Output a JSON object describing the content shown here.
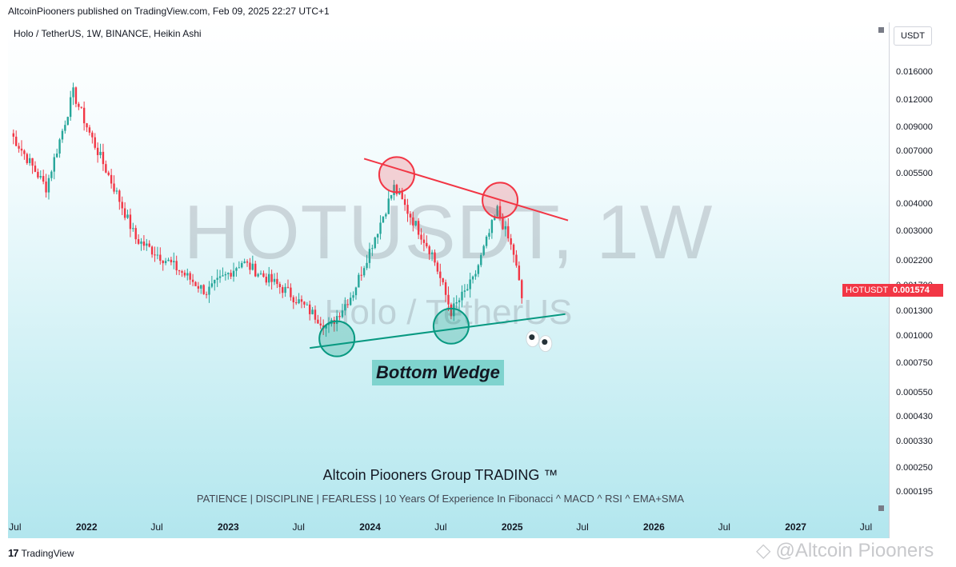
{
  "header": {
    "published_text": "AltcoinPiooners published on TradingView.com, Feb 09, 2025 22:27 UTC+1"
  },
  "symbol": {
    "description": "Holo / TetherUS, 1W, BINANCE, Heikin Ashi",
    "watermark_ticker": "HOTUSDT, 1W",
    "watermark_name": "Holo / TetherUS"
  },
  "annotations": {
    "pattern_label": "Bottom Wedge",
    "group_title": "Altcoin Piooners Group TRADING ™",
    "tagline": "PATIENCE   |   DISCIPLINE   |   FEARLESS | 10 Years Of Experience In Fibonacci ^ MACD ^ RSI ^ EMA+SMA"
  },
  "price_axis": {
    "currency": "USDT",
    "ticks": [
      "0.016000",
      "0.012000",
      "0.009000",
      "0.007000",
      "0.005500",
      "0.004000",
      "0.003000",
      "0.002200",
      "0.001700",
      "0.001300",
      "0.001000",
      "0.000750",
      "0.000550",
      "0.000430",
      "0.000330",
      "0.000250",
      "0.000195"
    ],
    "current_symbol": "HOTUSDT",
    "current_price": "0.001574"
  },
  "time_axis": {
    "ticks": [
      {
        "label": "Jul",
        "year": false
      },
      {
        "label": "2022",
        "year": true
      },
      {
        "label": "Jul",
        "year": false
      },
      {
        "label": "2023",
        "year": true
      },
      {
        "label": "Jul",
        "year": false
      },
      {
        "label": "2024",
        "year": true
      },
      {
        "label": "Jul",
        "year": false
      },
      {
        "label": "2025",
        "year": true
      },
      {
        "label": "Jul",
        "year": false
      },
      {
        "label": "2026",
        "year": true
      },
      {
        "label": "Jul",
        "year": false
      },
      {
        "label": "2027",
        "year": true
      },
      {
        "label": "Jul",
        "year": false
      }
    ]
  },
  "footer": {
    "brand": "TradingView",
    "watermark": "@Altcoin Piooners"
  },
  "colors": {
    "up": "#26a69a",
    "down": "#f23645",
    "resistance_line": "#f23645",
    "support_line": "#089981"
  },
  "chart_data": {
    "type": "candlestick",
    "style": "Heikin Ashi",
    "timeframe": "1W",
    "scale": "log",
    "ylim": [
      0.000185,
      0.0185
    ],
    "x_range": [
      "2021-06-21",
      "2027-09-06"
    ],
    "legend": "none",
    "grid": false,
    "key_points": [
      {
        "date": "2021-06-28",
        "price": 0.0085
      },
      {
        "date": "2021-09-27",
        "price": 0.0048
      },
      {
        "date": "2021-12-06",
        "price": 0.013
      },
      {
        "date": "2022-01-17",
        "price": 0.0085
      },
      {
        "date": "2022-03-28",
        "price": 0.0045
      },
      {
        "date": "2022-05-16",
        "price": 0.0028
      },
      {
        "date": "2022-08-08",
        "price": 0.0022
      },
      {
        "date": "2022-11-14",
        "price": 0.0016
      },
      {
        "date": "2023-02-13",
        "price": 0.0022
      },
      {
        "date": "2023-06-12",
        "price": 0.0016
      },
      {
        "date": "2023-09-25",
        "price": 0.0011
      },
      {
        "date": "2023-11-27",
        "price": 0.0016
      },
      {
        "date": "2024-03-11",
        "price": 0.0048
      },
      {
        "date": "2024-06-17",
        "price": 0.0024
      },
      {
        "date": "2024-08-05",
        "price": 0.0013
      },
      {
        "date": "2024-09-30",
        "price": 0.0018
      },
      {
        "date": "2024-12-02",
        "price": 0.0038
      },
      {
        "date": "2025-01-13",
        "price": 0.0024
      },
      {
        "date": "2025-02-03",
        "price": 0.0015
      }
    ],
    "resistance_line": [
      {
        "date": "2023-12-25",
        "price": 0.0065
      },
      {
        "date": "2025-06-02",
        "price": 0.0034
      }
    ],
    "support_line": [
      {
        "date": "2023-08-07",
        "price": 0.00089
      },
      {
        "date": "2025-05-26",
        "price": 0.00127
      }
    ],
    "highlighted_highs": [
      {
        "date": "2024-03-18",
        "price": 0.0055
      },
      {
        "date": "2024-12-09",
        "price": 0.0042
      }
    ],
    "highlighted_lows": [
      {
        "date": "2023-10-16",
        "price": 0.00098
      },
      {
        "date": "2024-08-05",
        "price": 0.00112
      }
    ]
  }
}
